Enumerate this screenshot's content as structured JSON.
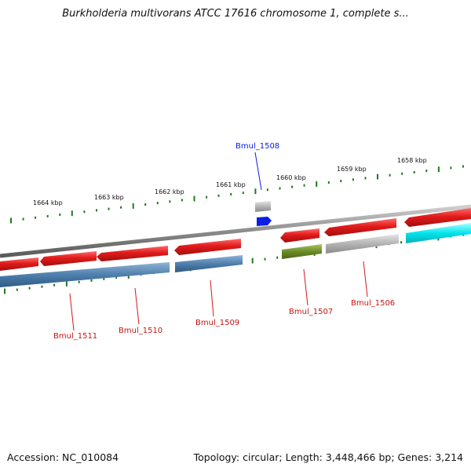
{
  "title": "Burkholderia multivorans ATCC 17616 chromosome 1, complete s...",
  "footer": {
    "accession": "Accession: NC_010084",
    "summary": "Topology: circular; Length: 3,448,466 bp; Genes: 3,214"
  },
  "colors": {
    "forward_cds": "#e21b1b",
    "reverse_cds_blue": "#4f7fad",
    "reverse_cds_green": "#6a8c25",
    "cyan_feature": "#00e5ee",
    "grey_feature": "#b4b4b4",
    "highlight_gene": "#0a1ee6",
    "tick": "#1f7a1f",
    "backbone": "#8c8c8c"
  },
  "scale_labels": [
    "1664 kbp",
    "1663 kbp",
    "1662 kbp",
    "1661 kbp",
    "1660 kbp",
    "1659 kbp",
    "1658 kbp"
  ],
  "gene_labels": {
    "bmul_1508": "Bmul_1508",
    "bmul_1511": "Bmul_1511",
    "bmul_1510": "Bmul_1510",
    "bmul_1509": "Bmul_1509",
    "bmul_1507": "Bmul_1507",
    "bmul_1506": "Bmul_1506"
  }
}
